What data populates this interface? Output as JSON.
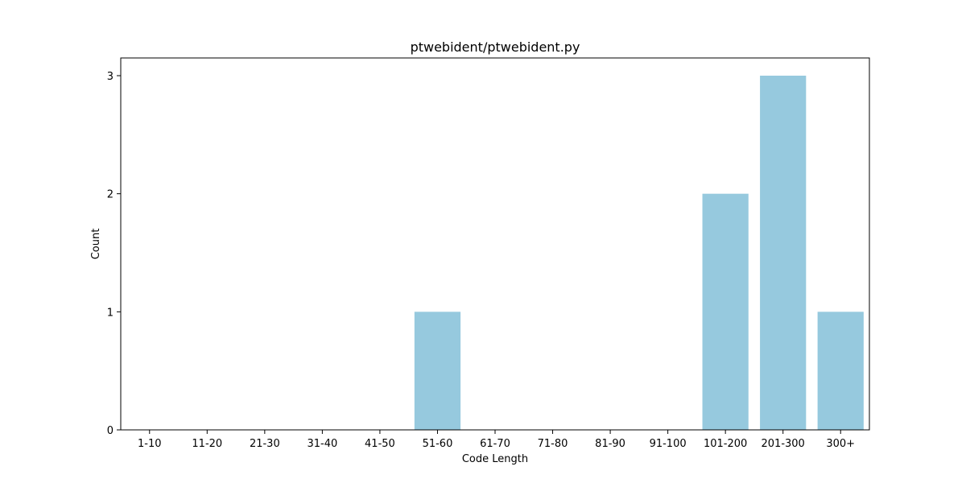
{
  "chart_data": {
    "type": "bar",
    "title": "ptwebident/ptwebident.py",
    "xlabel": "Code Length",
    "ylabel": "Count",
    "categories": [
      "1-10",
      "11-20",
      "21-30",
      "31-40",
      "41-50",
      "51-60",
      "61-70",
      "71-80",
      "81-90",
      "91-100",
      "101-200",
      "201-300",
      "300+"
    ],
    "values": [
      0,
      0,
      0,
      0,
      0,
      1,
      0,
      0,
      0,
      0,
      2,
      3,
      1
    ],
    "ylim": [
      0,
      3.15
    ],
    "yticks": [
      "0",
      "1",
      "2",
      "3"
    ],
    "grid": false,
    "bar_color": "#96c9de"
  }
}
